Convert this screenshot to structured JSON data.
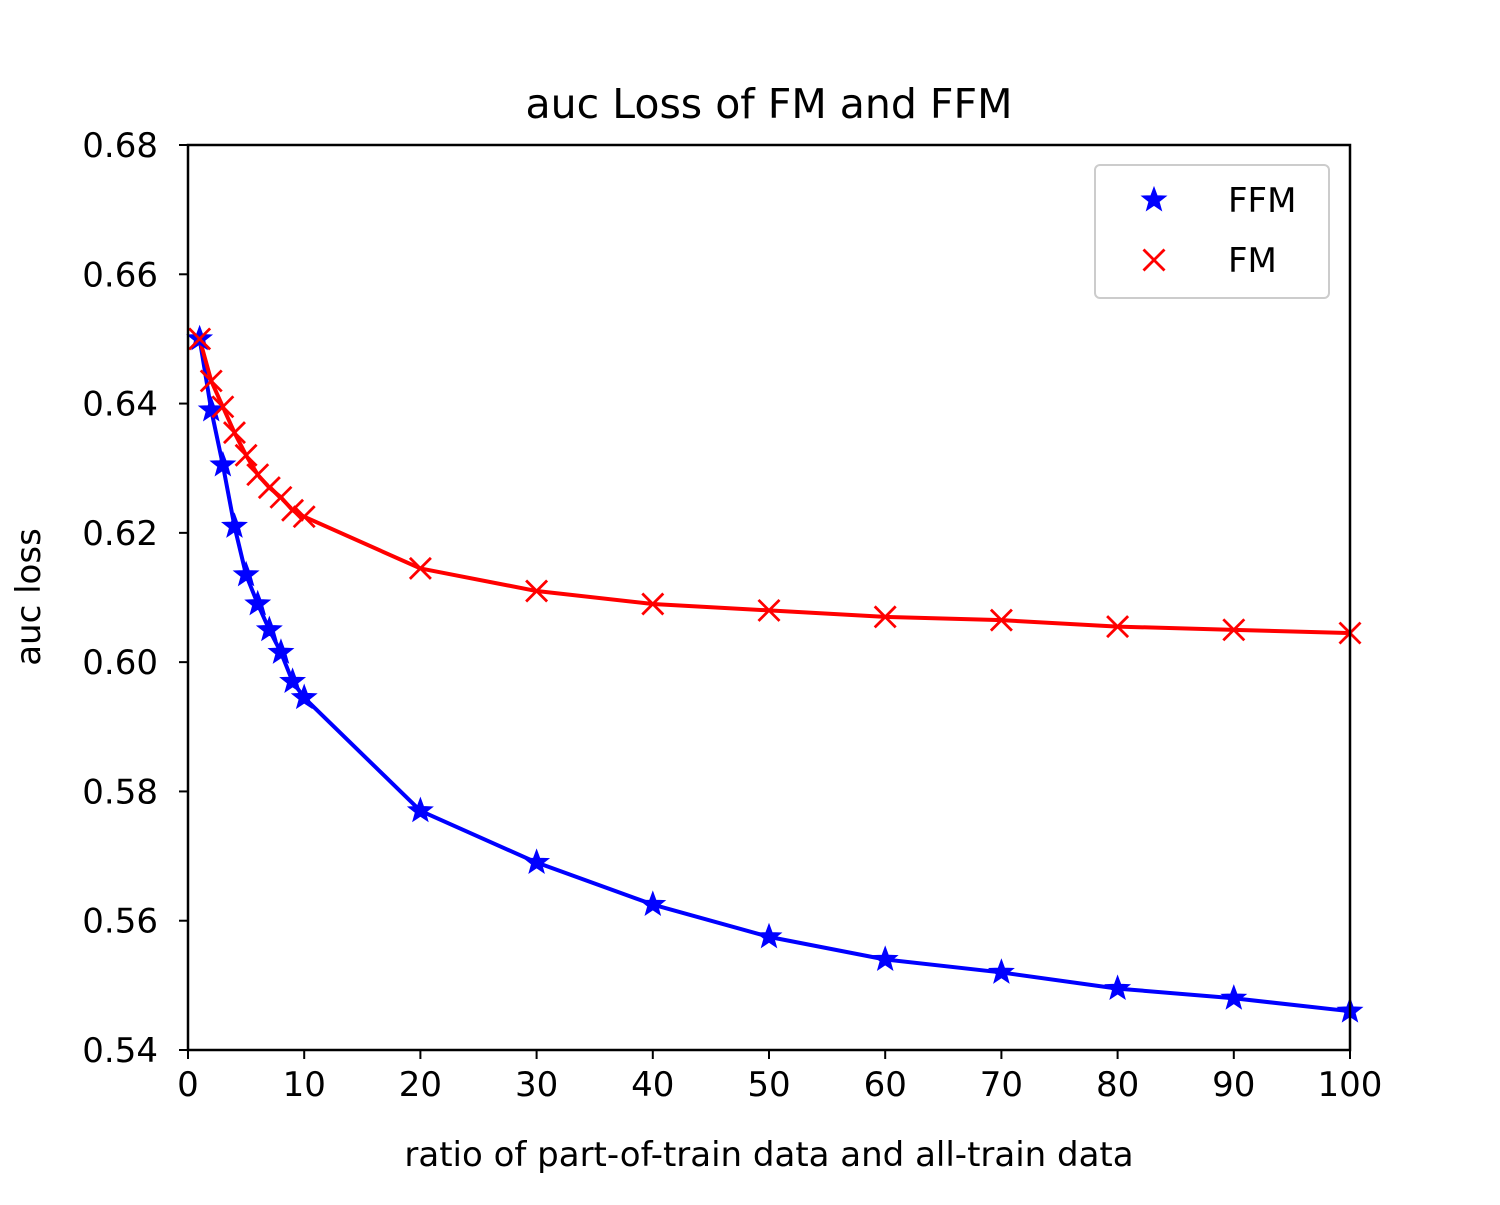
{
  "chart_data": {
    "type": "line",
    "title": "auc Loss of FM and FFM",
    "xlabel": "ratio of part-of-train data and all-train data",
    "ylabel": "auc loss",
    "xlim": [
      0,
      100
    ],
    "ylim": [
      0.54,
      0.68
    ],
    "xticks": [
      0,
      10,
      20,
      30,
      40,
      50,
      60,
      70,
      80,
      90,
      100
    ],
    "yticks": [
      0.54,
      0.56,
      0.58,
      0.6,
      0.62,
      0.64,
      0.66,
      0.68
    ],
    "xtick_labels": [
      "0",
      "10",
      "20",
      "30",
      "40",
      "50",
      "60",
      "70",
      "80",
      "90",
      "100"
    ],
    "ytick_labels": [
      "0.54",
      "0.56",
      "0.58",
      "0.60",
      "0.62",
      "0.64",
      "0.66",
      "0.68"
    ],
    "grid": false,
    "legend_position": "top-right",
    "series": [
      {
        "name": "FFM",
        "color": "#0000ff",
        "marker": "star",
        "x": [
          1,
          2,
          3,
          4,
          5,
          6,
          7,
          8,
          9,
          10,
          20,
          30,
          40,
          50,
          60,
          70,
          80,
          90,
          100
        ],
        "y": [
          0.65,
          0.639,
          0.6305,
          0.621,
          0.6135,
          0.609,
          0.605,
          0.6015,
          0.597,
          0.5945,
          0.577,
          0.569,
          0.5625,
          0.5575,
          0.554,
          0.552,
          0.5495,
          0.548,
          0.546
        ]
      },
      {
        "name": "FM",
        "color": "#ff0000",
        "marker": "x",
        "x": [
          1,
          2,
          3,
          4,
          5,
          6,
          7,
          8,
          9,
          10,
          20,
          30,
          40,
          50,
          60,
          70,
          80,
          90,
          100
        ],
        "y": [
          0.65,
          0.6435,
          0.6395,
          0.6355,
          0.632,
          0.629,
          0.627,
          0.6255,
          0.6235,
          0.6225,
          0.6145,
          0.611,
          0.609,
          0.608,
          0.607,
          0.6065,
          0.6055,
          0.605,
          0.6045
        ]
      }
    ]
  }
}
